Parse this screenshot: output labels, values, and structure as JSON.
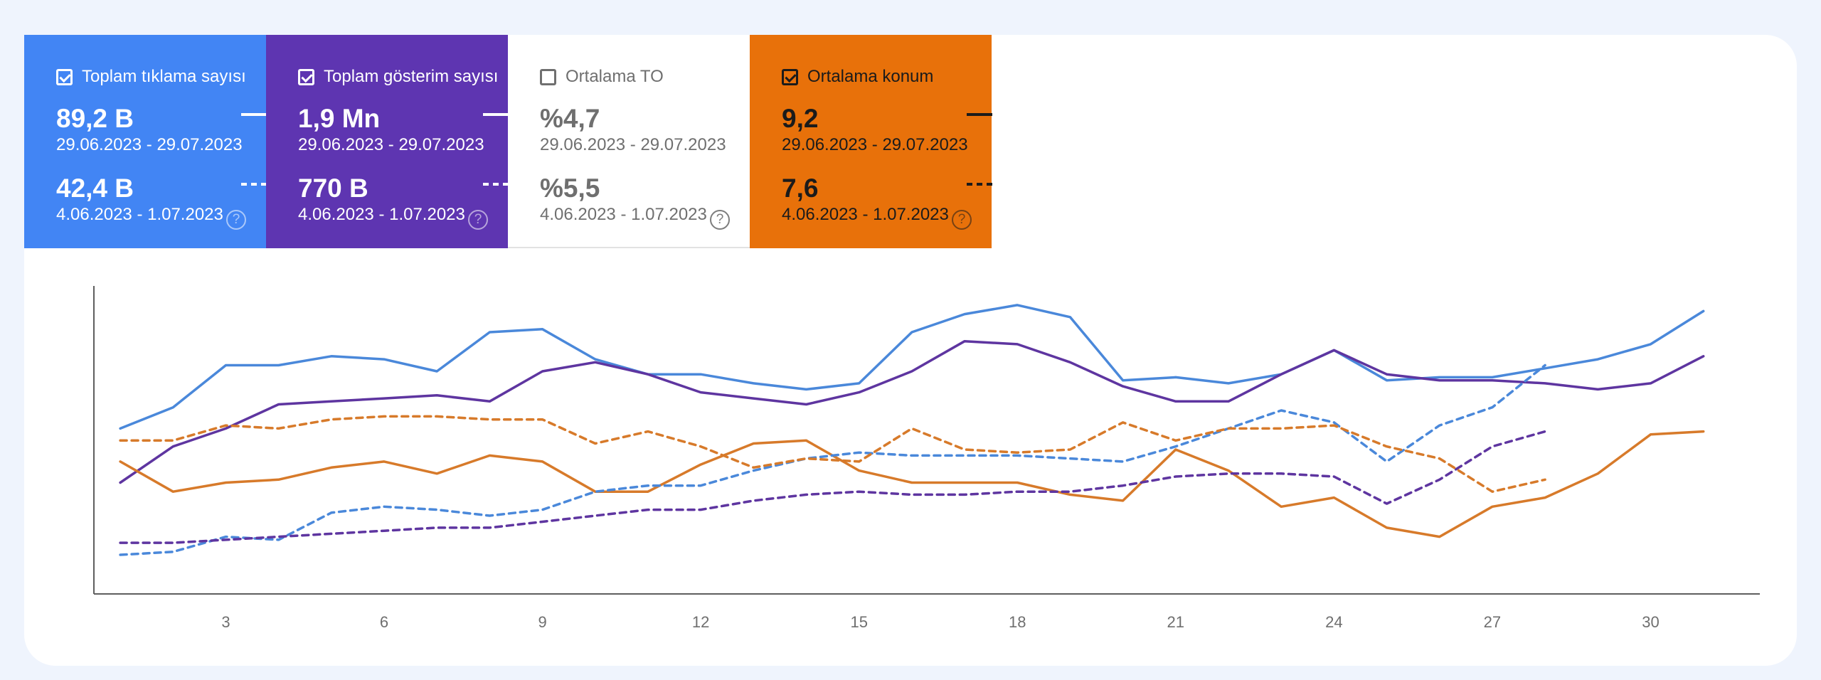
{
  "cards": [
    {
      "title": "Toplam tıklama sayısı",
      "checked": true,
      "bg": "#4285f4",
      "style": "light",
      "current_value": "89,2 B",
      "current_range": "29.06.2023 - 29.07.2023",
      "previous_value": "42,4 B",
      "previous_range": "4.06.2023 - 1.07.2023"
    },
    {
      "title": "Toplam gösterim sayısı",
      "checked": true,
      "bg": "#5e35b1",
      "style": "light",
      "current_value": "1,9 Mn",
      "current_range": "29.06.2023 - 29.07.2023",
      "previous_value": "770 B",
      "previous_range": "4.06.2023 - 1.07.2023"
    },
    {
      "title": "Ortalama TO",
      "checked": false,
      "bg": "#ffffff",
      "style": "inactive",
      "current_value": "%4,7",
      "current_range": "29.06.2023 - 29.07.2023",
      "previous_value": "%5,5",
      "previous_range": "4.06.2023 - 1.07.2023"
    },
    {
      "title": "Ortalama konum",
      "checked": true,
      "bg": "#e8710a",
      "style": "dark",
      "current_value": "9,2",
      "current_range": "29.06.2023 - 29.07.2023",
      "previous_value": "7,6",
      "previous_range": "4.06.2023 - 1.07.2023"
    }
  ],
  "help_glyph": "?",
  "chart_data": {
    "type": "line",
    "title": "",
    "xlabel": "",
    "ylabel": "",
    "y_axis_shown": false,
    "grid": false,
    "xlim": [
      0.5,
      31.8
    ],
    "ylim": [
      0,
      100
    ],
    "x_ticks": [
      3,
      6,
      9,
      12,
      15,
      18,
      21,
      24,
      27,
      30
    ],
    "series": [
      {
        "color": "#4a88da",
        "dash": false,
        "x": [
          1,
          2,
          3,
          4,
          5,
          6,
          7,
          8,
          9,
          10,
          11,
          12,
          13,
          14,
          15,
          16,
          17,
          18,
          19,
          20,
          21,
          22,
          23,
          24,
          25,
          26,
          27,
          28,
          29,
          30,
          31
        ],
        "y": [
          55,
          62,
          76,
          76,
          79,
          78,
          74,
          87,
          88,
          78,
          73,
          73,
          70,
          68,
          70,
          87,
          93,
          96,
          92,
          71,
          72,
          70,
          73,
          81,
          71,
          72,
          72,
          75,
          78,
          83,
          94
        ]
      },
      {
        "color": "#5e35a0",
        "dash": false,
        "x": [
          1,
          2,
          3,
          4,
          5,
          6,
          7,
          8,
          9,
          10,
          11,
          12,
          13,
          14,
          15,
          16,
          17,
          18,
          19,
          20,
          21,
          22,
          23,
          24,
          25,
          26,
          27,
          28,
          29,
          30,
          31
        ],
        "y": [
          37,
          49,
          55,
          63,
          64,
          65,
          66,
          64,
          74,
          77,
          73,
          67,
          65,
          63,
          67,
          74,
          84,
          83,
          77,
          69,
          64,
          64,
          73,
          81,
          73,
          71,
          71,
          70,
          68,
          70,
          79
        ]
      },
      {
        "color": "#d77a2a",
        "dash": false,
        "x": [
          1,
          2,
          3,
          4,
          5,
          6,
          7,
          8,
          9,
          10,
          11,
          12,
          13,
          14,
          15,
          16,
          17,
          18,
          19,
          20,
          21,
          22,
          23,
          24,
          25,
          26,
          27,
          28,
          29,
          30,
          31
        ],
        "y": [
          44,
          34,
          37,
          38,
          42,
          44,
          40,
          46,
          44,
          34,
          34,
          43,
          50,
          51,
          41,
          37,
          37,
          37,
          33,
          31,
          48,
          41,
          29,
          32,
          22,
          19,
          29,
          32,
          40,
          53,
          54
        ]
      },
      {
        "color": "#4a88da",
        "dash": true,
        "x": [
          1,
          2,
          3,
          4,
          5,
          6,
          7,
          8,
          9,
          10,
          11,
          12,
          13,
          14,
          15,
          16,
          17,
          18,
          19,
          20,
          21,
          22,
          23,
          24,
          25,
          26,
          27,
          28
        ],
        "y": [
          13,
          14,
          19,
          18,
          27,
          29,
          28,
          26,
          28,
          34,
          36,
          36,
          41,
          45,
          47,
          46,
          46,
          46,
          45,
          44,
          49,
          55,
          61,
          57,
          44,
          56,
          62,
          76
        ]
      },
      {
        "color": "#5e35a0",
        "dash": true,
        "x": [
          1,
          2,
          3,
          4,
          5,
          6,
          7,
          8,
          9,
          10,
          11,
          12,
          13,
          14,
          15,
          16,
          17,
          18,
          19,
          20,
          21,
          22,
          23,
          24,
          25,
          26,
          27,
          28
        ],
        "y": [
          17,
          17,
          18,
          19,
          20,
          21,
          22,
          22,
          24,
          26,
          28,
          28,
          31,
          33,
          34,
          33,
          33,
          34,
          34,
          36,
          39,
          40,
          40,
          39,
          30,
          38,
          49,
          54
        ]
      },
      {
        "color": "#d77a2a",
        "dash": true,
        "x": [
          1,
          2,
          3,
          4,
          5,
          6,
          7,
          8,
          9,
          10,
          11,
          12,
          13,
          14,
          15,
          16,
          17,
          18,
          19,
          20,
          21,
          22,
          23,
          24,
          25,
          26,
          27,
          28
        ],
        "y": [
          51,
          51,
          56,
          55,
          58,
          59,
          59,
          58,
          58,
          50,
          54,
          49,
          42,
          45,
          44,
          55,
          48,
          47,
          48,
          57,
          51,
          55,
          55,
          56,
          49,
          45,
          34,
          38
        ]
      }
    ]
  }
}
